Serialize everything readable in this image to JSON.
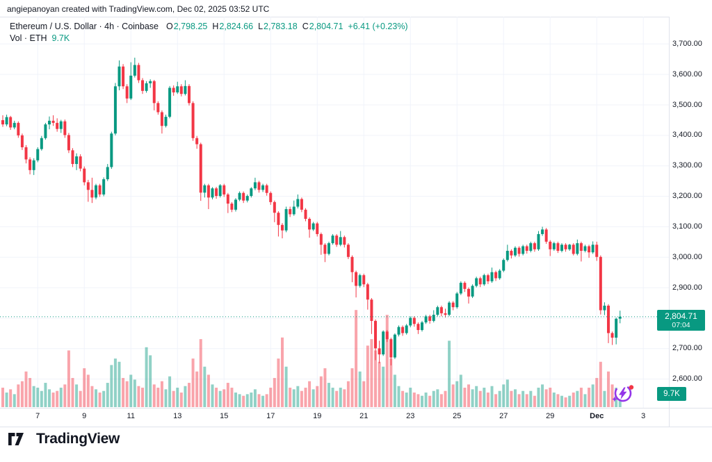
{
  "watermark": "angiepanoyan created with TradingView.com, Dec 02, 2025 03:52 UTC",
  "legend": {
    "title": "Ethereum / U.S. Dollar · 4h · Coinbase",
    "o_label": "O",
    "o_value": "2,798.25",
    "h_label": "H",
    "h_value": "2,824.66",
    "l_label": "L",
    "l_value": "2,783.18",
    "c_label": "C",
    "c_value": "2,804.71",
    "change": "+6.41 (+0.23%)",
    "vol_label": "Vol · ETH",
    "vol_value": "9.7K"
  },
  "price_axis": {
    "price_badge": {
      "price": "2,804.71",
      "countdown": "07:04"
    },
    "volume_badge": "9.7K"
  },
  "branding": {
    "logo_text": "TradingView"
  },
  "colors": {
    "up": "#089981",
    "down": "#f23645",
    "volume_up": "rgba(8,153,129,0.45)",
    "volume_down": "rgba(242,54,69,0.45)",
    "grid": "#f0f3fa",
    "axis_border": "#e0e3eb",
    "text": "#131722",
    "badge_bg": "#089981",
    "price_line": "#089981"
  },
  "chart_data": {
    "type": "candlestick",
    "title": "Ethereum / U.S. Dollar · 4h · Coinbase",
    "symbol": "ETH/USD",
    "interval": "4h",
    "exchange": "Coinbase",
    "start_time": "2025-11-05 12:00 UTC",
    "candle_hours": 4,
    "current_price": 2804.71,
    "current_volume_k": 9.7,
    "y_axis": {
      "grid_prices": [
        2600,
        2700,
        2800,
        2900,
        3000,
        3100,
        3200,
        3300,
        3400,
        3500,
        3600,
        3700
      ],
      "label_prices": [
        2600,
        2700,
        2900,
        3000,
        3100,
        3200,
        3300,
        3400,
        3500,
        3600,
        3700
      ],
      "range": [
        2550,
        3720
      ]
    },
    "x_axis": {
      "ticks": [
        {
          "t": "7",
          "i": 9
        },
        {
          "t": "9",
          "i": 21
        },
        {
          "t": "11",
          "i": 33
        },
        {
          "t": "13",
          "i": 45
        },
        {
          "t": "15",
          "i": 57
        },
        {
          "t": "17",
          "i": 69
        },
        {
          "t": "19",
          "i": 81
        },
        {
          "t": "21",
          "i": 93
        },
        {
          "t": "23",
          "i": 105
        },
        {
          "t": "25",
          "i": 117
        },
        {
          "t": "27",
          "i": 129
        },
        {
          "t": "29",
          "i": 141
        },
        {
          "t": "Dec",
          "i": 153,
          "bold": true
        },
        {
          "t": "3",
          "i": 165
        }
      ]
    },
    "volume_unit": "K ETH",
    "candles": [
      [
        3450,
        3466,
        3428,
        3436,
        12
      ],
      [
        3436,
        3468,
        3430,
        3460,
        9
      ],
      [
        3460,
        3464,
        3418,
        3426,
        11
      ],
      [
        3426,
        3448,
        3420,
        3441,
        8
      ],
      [
        3441,
        3446,
        3392,
        3400,
        14
      ],
      [
        3400,
        3406,
        3352,
        3361,
        16
      ],
      [
        3361,
        3368,
        3308,
        3321,
        22
      ],
      [
        3321,
        3328,
        3272,
        3286,
        18
      ],
      [
        3286,
        3325,
        3270,
        3318,
        13
      ],
      [
        3318,
        3361,
        3312,
        3355,
        12
      ],
      [
        3355,
        3398,
        3350,
        3391,
        10
      ],
      [
        3391,
        3441,
        3386,
        3436,
        15
      ],
      [
        3436,
        3462,
        3420,
        3448,
        11
      ],
      [
        3448,
        3466,
        3431,
        3441,
        9
      ],
      [
        3441,
        3456,
        3412,
        3421,
        10
      ],
      [
        3421,
        3451,
        3408,
        3446,
        12
      ],
      [
        3446,
        3452,
        3392,
        3401,
        14
      ],
      [
        3401,
        3408,
        3342,
        3351,
        35
      ],
      [
        3351,
        3358,
        3296,
        3306,
        18
      ],
      [
        3306,
        3341,
        3286,
        3331,
        14
      ],
      [
        3331,
        3338,
        3282,
        3291,
        10
      ],
      [
        3291,
        3298,
        3236,
        3246,
        24
      ],
      [
        3246,
        3254,
        3182,
        3221,
        20
      ],
      [
        3221,
        3261,
        3178,
        3196,
        13
      ],
      [
        3196,
        3241,
        3190,
        3236,
        11
      ],
      [
        3236,
        3241,
        3198,
        3206,
        9
      ],
      [
        3206,
        3262,
        3200,
        3256,
        10
      ],
      [
        3256,
        3306,
        3250,
        3296,
        15
      ],
      [
        3296,
        3412,
        3290,
        3406,
        26
      ],
      [
        3406,
        3572,
        3400,
        3561,
        30
      ],
      [
        3561,
        3646,
        3548,
        3626,
        28
      ],
      [
        3626,
        3634,
        3552,
        3561,
        18
      ],
      [
        3561,
        3568,
        3506,
        3521,
        16
      ],
      [
        3521,
        3640,
        3516,
        3596,
        20
      ],
      [
        3596,
        3655,
        3590,
        3631,
        17
      ],
      [
        3631,
        3638,
        3572,
        3581,
        13
      ],
      [
        3581,
        3588,
        3536,
        3546,
        12
      ],
      [
        3546,
        3578,
        3540,
        3571,
        37
      ],
      [
        3571,
        3584,
        3556,
        3578,
        32
      ],
      [
        3578,
        3582,
        3482,
        3506,
        14
      ],
      [
        3506,
        3512,
        3468,
        3476,
        12
      ],
      [
        3476,
        3482,
        3406,
        3431,
        16
      ],
      [
        3431,
        3468,
        3426,
        3461,
        11
      ],
      [
        3461,
        3562,
        3456,
        3556,
        19
      ],
      [
        3556,
        3564,
        3530,
        3541,
        10
      ],
      [
        3541,
        3576,
        3536,
        3561,
        12
      ],
      [
        3561,
        3568,
        3528,
        3536,
        9
      ],
      [
        3536,
        3581,
        3531,
        3562,
        13
      ],
      [
        3562,
        3568,
        3498,
        3506,
        15
      ],
      [
        3506,
        3512,
        3382,
        3391,
        30
      ],
      [
        3391,
        3398,
        3356,
        3371,
        22
      ],
      [
        3371,
        3376,
        3185,
        3212,
        42
      ],
      [
        3212,
        3241,
        3196,
        3236,
        25
      ],
      [
        3236,
        3241,
        3158,
        3196,
        20
      ],
      [
        3196,
        3230,
        3190,
        3226,
        14
      ],
      [
        3226,
        3231,
        3192,
        3201,
        12
      ],
      [
        3201,
        3240,
        3196,
        3236,
        10
      ],
      [
        3236,
        3241,
        3198,
        3206,
        11
      ],
      [
        3206,
        3211,
        3145,
        3176,
        15
      ],
      [
        3176,
        3181,
        3148,
        3156,
        12
      ],
      [
        3156,
        3194,
        3150,
        3189,
        9
      ],
      [
        3189,
        3216,
        3184,
        3211,
        8
      ],
      [
        3211,
        3216,
        3178,
        3186,
        7
      ],
      [
        3186,
        3206,
        3180,
        3201,
        8
      ],
      [
        3201,
        3230,
        3196,
        3226,
        9
      ],
      [
        3226,
        3261,
        3220,
        3246,
        11
      ],
      [
        3246,
        3251,
        3212,
        3221,
        8
      ],
      [
        3221,
        3241,
        3214,
        3236,
        7
      ],
      [
        3236,
        3241,
        3202,
        3211,
        8
      ],
      [
        3211,
        3216,
        3172,
        3181,
        12
      ],
      [
        3181,
        3186,
        3115,
        3146,
        18
      ],
      [
        3146,
        3151,
        3068,
        3106,
        30
      ],
      [
        3106,
        3112,
        3062,
        3088,
        43
      ],
      [
        3088,
        3166,
        3082,
        3158,
        25
      ],
      [
        3158,
        3166,
        3132,
        3141,
        12
      ],
      [
        3141,
        3186,
        3136,
        3166,
        11
      ],
      [
        3166,
        3206,
        3160,
        3191,
        13
      ],
      [
        3191,
        3196,
        3148,
        3156,
        10
      ],
      [
        3156,
        3161,
        3118,
        3126,
        12
      ],
      [
        3126,
        3131,
        3064,
        3091,
        16
      ],
      [
        3091,
        3116,
        3086,
        3111,
        11
      ],
      [
        3111,
        3116,
        3068,
        3076,
        13
      ],
      [
        3076,
        3081,
        3008,
        3041,
        19
      ],
      [
        3041,
        3046,
        2984,
        3011,
        24
      ],
      [
        3011,
        3051,
        3006,
        3046,
        15
      ],
      [
        3046,
        3076,
        3041,
        3071,
        12
      ],
      [
        3071,
        3076,
        3034,
        3041,
        10
      ],
      [
        3041,
        3086,
        3036,
        3066,
        12
      ],
      [
        3066,
        3071,
        3032,
        3041,
        11
      ],
      [
        3041,
        3046,
        2994,
        3001,
        16
      ],
      [
        3001,
        3006,
        2918,
        2951,
        24
      ],
      [
        2951,
        2956,
        2868,
        2906,
        60
      ],
      [
        2906,
        2946,
        2900,
        2941,
        22
      ],
      [
        2941,
        2946,
        2902,
        2911,
        16
      ],
      [
        2911,
        2916,
        2828,
        2861,
        38
      ],
      [
        2861,
        2866,
        2748,
        2791,
        42
      ],
      [
        2791,
        2796,
        2662,
        2701,
        35
      ],
      [
        2701,
        2726,
        2652,
        2681,
        28
      ],
      [
        2681,
        2760,
        2676,
        2756,
        25
      ],
      [
        2756,
        2761,
        2722,
        2731,
        57
      ],
      [
        2731,
        2736,
        2645,
        2671,
        30
      ],
      [
        2671,
        2750,
        2666,
        2746,
        20
      ],
      [
        2746,
        2776,
        2740,
        2771,
        13
      ],
      [
        2771,
        2776,
        2742,
        2751,
        10
      ],
      [
        2751,
        2781,
        2746,
        2776,
        9
      ],
      [
        2776,
        2806,
        2770,
        2801,
        12
      ],
      [
        2801,
        2806,
        2772,
        2781,
        9
      ],
      [
        2781,
        2786,
        2748,
        2761,
        8
      ],
      [
        2761,
        2791,
        2756,
        2786,
        7
      ],
      [
        2786,
        2811,
        2781,
        2806,
        9
      ],
      [
        2806,
        2811,
        2782,
        2791,
        7
      ],
      [
        2791,
        2826,
        2786,
        2811,
        10
      ],
      [
        2811,
        2841,
        2806,
        2836,
        11
      ],
      [
        2836,
        2841,
        2806,
        2816,
        8
      ],
      [
        2816,
        2831,
        2802,
        2811,
        10
      ],
      [
        2811,
        2856,
        2806,
        2851,
        41
      ],
      [
        2851,
        2856,
        2826,
        2836,
        14
      ],
      [
        2836,
        2886,
        2831,
        2881,
        16
      ],
      [
        2881,
        2921,
        2876,
        2916,
        20
      ],
      [
        2916,
        2921,
        2886,
        2896,
        12
      ],
      [
        2896,
        2901,
        2848,
        2871,
        14
      ],
      [
        2871,
        2911,
        2866,
        2906,
        11
      ],
      [
        2906,
        2936,
        2901,
        2931,
        13
      ],
      [
        2931,
        2936,
        2902,
        2911,
        10
      ],
      [
        2911,
        2946,
        2906,
        2941,
        12
      ],
      [
        2941,
        2946,
        2912,
        2921,
        9
      ],
      [
        2921,
        2966,
        2916,
        2951,
        13
      ],
      [
        2951,
        2956,
        2922,
        2931,
        8
      ],
      [
        2931,
        2961,
        2926,
        2956,
        10
      ],
      [
        2956,
        2996,
        2951,
        2991,
        14
      ],
      [
        2991,
        3041,
        2986,
        3021,
        17
      ],
      [
        3021,
        3026,
        2996,
        3006,
        10
      ],
      [
        3006,
        3036,
        3001,
        3031,
        11
      ],
      [
        3031,
        3036,
        3002,
        3011,
        8
      ],
      [
        3011,
        3041,
        3006,
        3036,
        10
      ],
      [
        3036,
        3041,
        3012,
        3021,
        8
      ],
      [
        3021,
        3051,
        3016,
        3046,
        10
      ],
      [
        3046,
        3051,
        3018,
        3026,
        7
      ],
      [
        3026,
        3086,
        3021,
        3076,
        12
      ],
      [
        3076,
        3100,
        3070,
        3091,
        14
      ],
      [
        3091,
        3096,
        3044,
        3051,
        11
      ],
      [
        3051,
        3056,
        3004,
        3026,
        12
      ],
      [
        3026,
        3051,
        3021,
        3046,
        9
      ],
      [
        3046,
        3051,
        3014,
        3021,
        8
      ],
      [
        3021,
        3046,
        3016,
        3041,
        7
      ],
      [
        3041,
        3046,
        3018,
        3026,
        6
      ],
      [
        3026,
        3044,
        3021,
        3041,
        7
      ],
      [
        3041,
        3046,
        3006,
        3011,
        9
      ],
      [
        3011,
        3058,
        3006,
        3046,
        10
      ],
      [
        3046,
        3051,
        2986,
        3021,
        12
      ],
      [
        3021,
        3041,
        3016,
        3036,
        8
      ],
      [
        3036,
        3041,
        2998,
        3016,
        12
      ],
      [
        3016,
        3052,
        3011,
        3041,
        14
      ],
      [
        3041,
        3051,
        2988,
        3001,
        18
      ],
      [
        3001,
        3006,
        2812,
        2826,
        28
      ],
      [
        2826,
        2852,
        2810,
        2841,
        10
      ],
      [
        2841,
        2846,
        2718,
        2751,
        22
      ],
      [
        2751,
        2756,
        2712,
        2736,
        14
      ],
      [
        2736,
        2802,
        2714,
        2798,
        12
      ],
      [
        2798.25,
        2824.66,
        2783.18,
        2804.71,
        9.7
      ]
    ]
  }
}
